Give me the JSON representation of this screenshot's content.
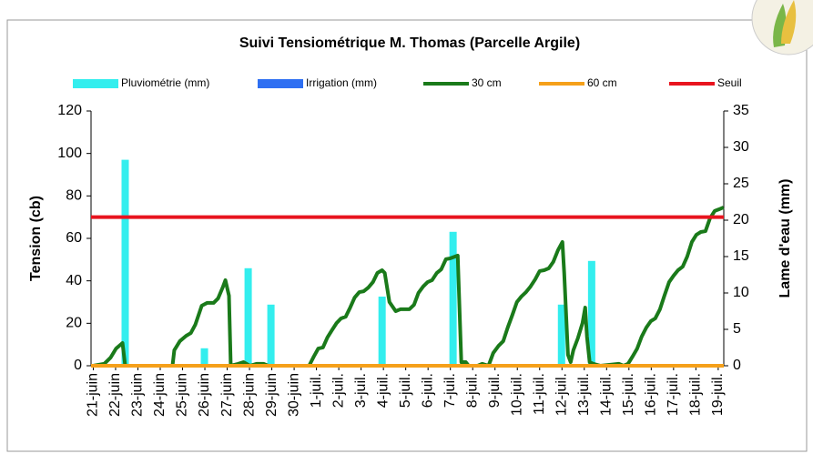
{
  "chart_data": {
    "type": "combo",
    "title": "Suivi Tensiométrique M. Thomas (Parcelle Argile)",
    "ylabel": "Tension (cb)",
    "y2label": "Lame d'eau (mm)",
    "xlim": [
      -0.1,
      28.25
    ],
    "xticks": [
      {
        "value": 0,
        "label": "21-juin"
      },
      {
        "value": 1,
        "label": "22-juin"
      },
      {
        "value": 2,
        "label": "23-juin"
      },
      {
        "value": 3,
        "label": "24-juin"
      },
      {
        "value": 4,
        "label": "25-juin"
      },
      {
        "value": 5,
        "label": "26-juin"
      },
      {
        "value": 6,
        "label": "27-juin"
      },
      {
        "value": 7,
        "label": "28-juin"
      },
      {
        "value": 8,
        "label": "29-juin"
      },
      {
        "value": 9,
        "label": "30-juin"
      },
      {
        "value": 10,
        "label": "1-juil."
      },
      {
        "value": 11,
        "label": "2-juil."
      },
      {
        "value": 12,
        "label": "3-juil."
      },
      {
        "value": 13,
        "label": "4-juil."
      },
      {
        "value": 14,
        "label": "5-juil."
      },
      {
        "value": 15,
        "label": "6-juil."
      },
      {
        "value": 16,
        "label": "7-juil."
      },
      {
        "value": 17,
        "label": "8-juil."
      },
      {
        "value": 18,
        "label": "9-juil."
      },
      {
        "value": 19,
        "label": "10-juil."
      },
      {
        "value": 20,
        "label": "11-juil."
      },
      {
        "value": 21,
        "label": "12-juil."
      },
      {
        "value": 22,
        "label": "13-juil."
      },
      {
        "value": 23,
        "label": "14-juil."
      },
      {
        "value": 24,
        "label": "15-juil."
      },
      {
        "value": 25,
        "label": "16-juil."
      },
      {
        "value": 26,
        "label": "17-juil."
      },
      {
        "value": 27,
        "label": "18-juil."
      },
      {
        "value": 28,
        "label": "19-juil."
      }
    ],
    "ylim": [
      0,
      120
    ],
    "yticks": [
      0,
      20,
      40,
      60,
      80,
      100,
      120
    ],
    "y2lim": [
      0,
      35
    ],
    "y2ticks": [
      0,
      5,
      10,
      15,
      20,
      25,
      30,
      35
    ],
    "series": [
      {
        "name": "Pluviométrie (mm)",
        "type": "bar",
        "axis": "y2",
        "color": "#33eeee",
        "x": [
          1.43,
          4.98,
          6.94,
          7.96,
          12.94,
          16.12,
          20.98,
          22.33
        ],
        "values": [
          28.3,
          2.4,
          13.4,
          8.4,
          9.5,
          18.4,
          8.4,
          14.4
        ]
      },
      {
        "name": "Irrigation (mm)",
        "type": "bar",
        "axis": "y2",
        "color": "#2e6ff2",
        "x": [],
        "values": []
      },
      {
        "name": "30 cm",
        "type": "line",
        "color": "#1a7a1a",
        "x": [
          0,
          0.49,
          0.78,
          1.02,
          1.31,
          1.43,
          1.92,
          3.55,
          3.63,
          3.88,
          4.16,
          4.37,
          4.57,
          4.86,
          5.1,
          5.39,
          5.59,
          5.8,
          5.92,
          6.08,
          6.16,
          6.49,
          6.73,
          7.02,
          7.31,
          7.63,
          7.84,
          9.67,
          9.88,
          10.08,
          10.29,
          10.49,
          10.69,
          10.9,
          11.1,
          11.31,
          11.51,
          11.71,
          11.92,
          12.12,
          12.33,
          12.53,
          12.73,
          12.94,
          13.06,
          13.27,
          13.55,
          13.76,
          14.16,
          14.37,
          14.57,
          14.78,
          14.98,
          15.18,
          15.39,
          15.59,
          15.8,
          16.0,
          16.33,
          16.49,
          16.69,
          16.82,
          17.22,
          17.43,
          17.71,
          17.92,
          18.16,
          18.37,
          18.57,
          18.78,
          18.98,
          19.18,
          19.39,
          19.59,
          19.8,
          20.0,
          20.2,
          20.41,
          20.61,
          20.82,
          21.02,
          21.1,
          21.27,
          21.39,
          21.51,
          21.71,
          21.92,
          22.04,
          22.12,
          22.24,
          22.41,
          22.73,
          23.55,
          23.76,
          23.96,
          24.16,
          24.37,
          24.57,
          24.78,
          24.98,
          25.18,
          25.39,
          25.59,
          25.8,
          26.0,
          26.2,
          26.41,
          26.61,
          26.82,
          27.02,
          27.22,
          27.43,
          27.63,
          27.84,
          28.04,
          28.24
        ],
        "values": [
          0,
          0.9,
          3.9,
          8.1,
          10.7,
          0,
          0,
          0,
          7.3,
          11.6,
          14.1,
          15.4,
          19.3,
          28.3,
          29.6,
          29.6,
          31.7,
          36.9,
          40.3,
          33.0,
          0,
          0.9,
          1.7,
          0,
          0.9,
          0.9,
          0,
          0,
          4.3,
          8.1,
          8.6,
          13.3,
          16.7,
          20.1,
          22.3,
          23.1,
          27.4,
          32.1,
          34.7,
          35.1,
          36.9,
          39.4,
          43.7,
          45.0,
          43.7,
          30.0,
          25.7,
          26.6,
          26.6,
          28.7,
          34.3,
          37.3,
          39.4,
          40.3,
          43.7,
          45.4,
          50.2,
          50.6,
          51.9,
          1.7,
          1.7,
          0,
          0,
          0.9,
          0,
          6.0,
          9.4,
          11.6,
          18.0,
          24.0,
          30.0,
          32.6,
          34.7,
          37.3,
          40.7,
          44.6,
          45.0,
          45.9,
          48.9,
          54.4,
          58.3,
          43.7,
          5.1,
          1.7,
          7.3,
          12.9,
          20.1,
          27.4,
          13.7,
          1.7,
          0.9,
          0,
          0.9,
          0,
          0.9,
          4.3,
          8.1,
          13.7,
          18.0,
          21.0,
          22.3,
          26.6,
          33.0,
          39.4,
          42.4,
          45.0,
          46.7,
          51.4,
          58.3,
          61.7,
          63.0,
          63.4,
          69.4,
          72.9,
          73.7,
          74.6
        ]
      },
      {
        "name": "60 cm",
        "type": "line",
        "color": "#f5a01a",
        "x": [
          -0.1,
          28.25
        ],
        "values": [
          0,
          0
        ]
      },
      {
        "name": "Seuil",
        "type": "line",
        "color": "#e8141e",
        "x": [
          -0.1,
          28.25
        ],
        "values": [
          70,
          70
        ]
      }
    ]
  }
}
